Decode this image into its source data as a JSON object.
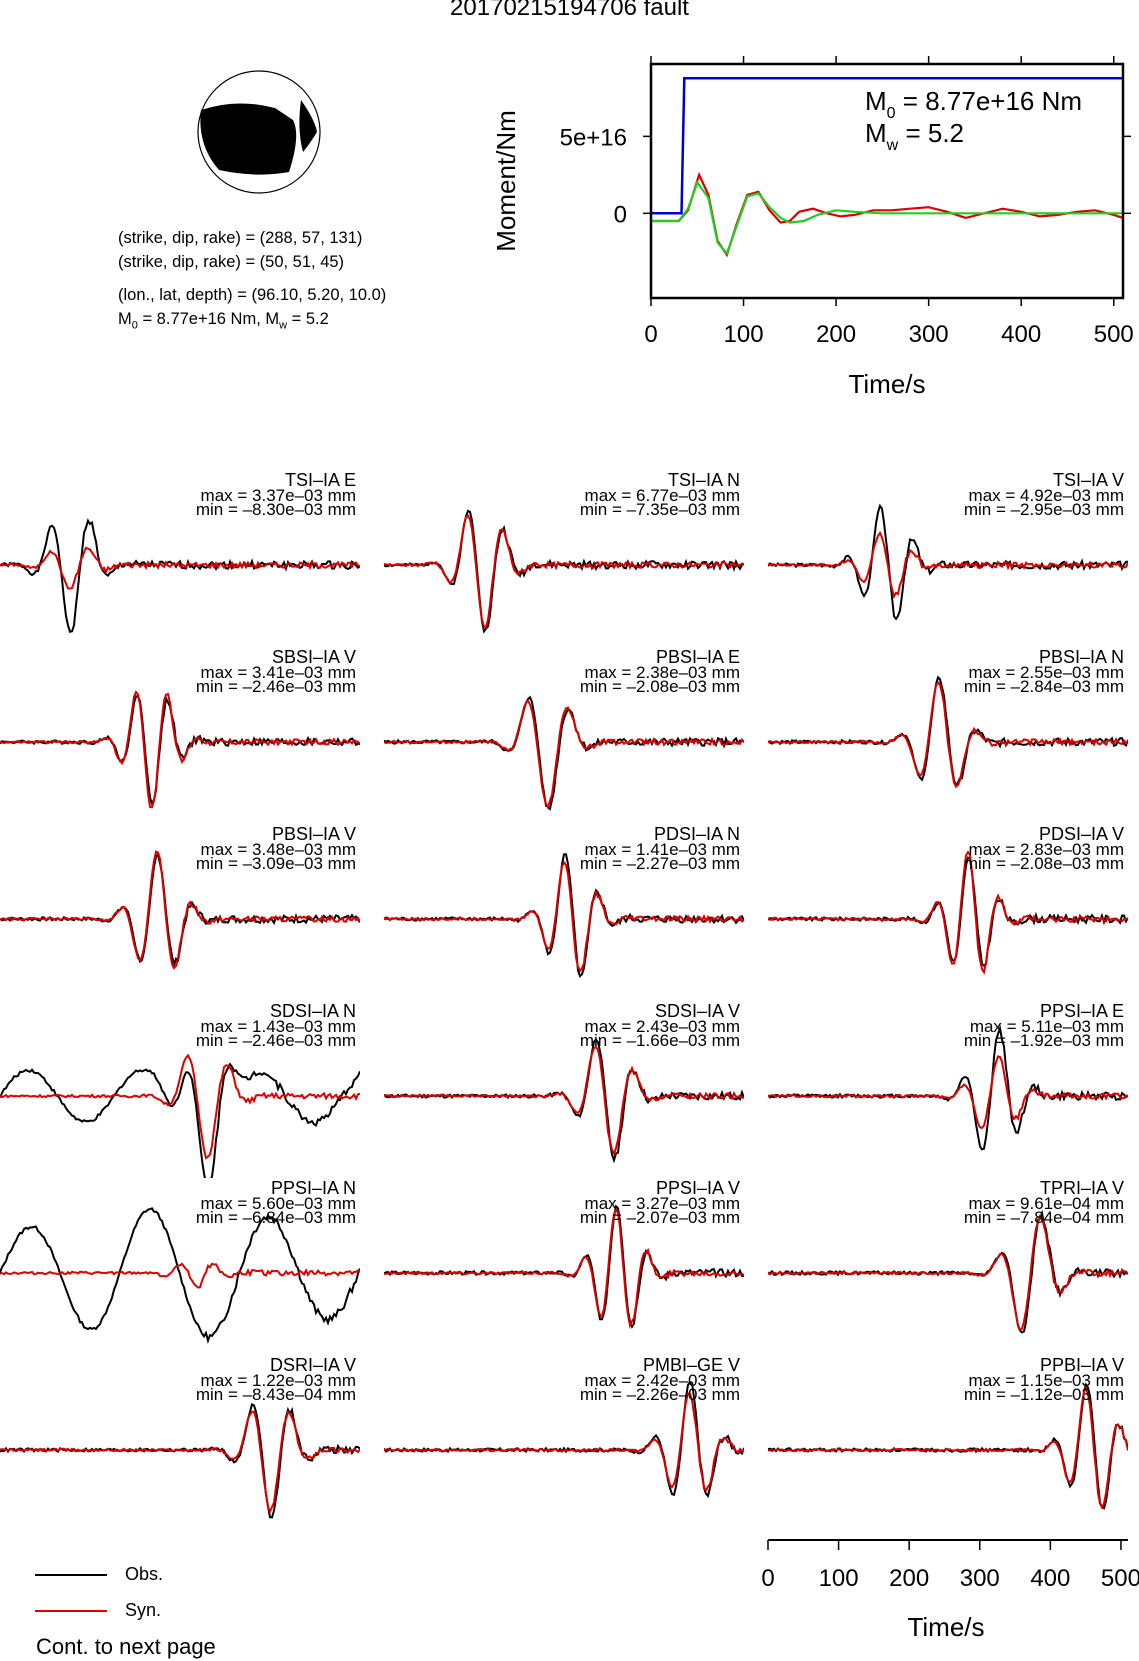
{
  "page_title": "20170215194706 fault",
  "event_info": {
    "line1": "(strike, dip, rake) = (288, 57, 131)",
    "line2": "(strike, dip, rake) = (50, 51, 45)",
    "line3": "(lon., lat, depth) = (96.10, 5.20, 10.0)",
    "line4_m0_prefix": "M",
    "line4_m0_sub": "0",
    "line4_m0_value": " = 8.77e+16 Nm, M",
    "line4_mw_sub": "w",
    "line4_mw_value": " = 5.2"
  },
  "beachball": {
    "fill_color": "#000000",
    "background_color": "#ffffff"
  },
  "chart_data": [
    {
      "type": "line",
      "title": "",
      "xlabel": "Time/s",
      "ylabel": "Moment/Nm",
      "xlim": [
        0,
        510
      ],
      "ylim": [
        -5.5e+16,
        9.7e+16
      ],
      "xticks": [
        0,
        100,
        200,
        300,
        400,
        500
      ],
      "ytick_labels": [
        {
          "value": 0,
          "label": "0"
        },
        {
          "value": 5e+16,
          "label": "5e+16"
        }
      ],
      "annotation": {
        "m0_symbol": "M",
        "m0_sub": "0",
        "m0_text": " = 8.77e+16 Nm",
        "mw_symbol": "M",
        "mw_sub": "w",
        "mw_text": " = 5.2"
      },
      "series": [
        {
          "color": "#0000cc",
          "x": [
            0,
            33,
            36,
            510
          ],
          "y": [
            0,
            0,
            8.77e+16,
            8.77e+16
          ]
        },
        {
          "color": "#dd0000",
          "x": [
            0,
            30,
            40,
            52,
            62,
            72,
            82,
            92,
            104,
            116,
            128,
            140,
            150,
            160,
            175,
            190,
            205,
            220,
            240,
            260,
            280,
            300,
            320,
            340,
            360,
            380,
            400,
            420,
            440,
            460,
            480,
            500,
            510
          ],
          "y": [
            -5000000000000000.0,
            -5000000000000000.0,
            2000000000000000.0,
            2.5e+16,
            1.2e+16,
            -1.8e+16,
            -2.7e+16,
            -8000000000000000.0,
            1.2e+16,
            1.4e+16,
            2000000000000000.0,
            -6000000000000000.0,
            -5000000000000000.0,
            1000000000000000.0,
            3000000000000000.0,
            0,
            -2000000000000000.0,
            -1000000000000000.0,
            2000000000000000.0,
            2000000000000000.0,
            3000000000000000.0,
            4000000000000000.0,
            1000000000000000.0,
            -3000000000000000.0,
            0,
            3000000000000000.0,
            1000000000000000.0,
            -2000000000000000.0,
            -1000000000000000.0,
            1000000000000000.0,
            2000000000000000.0,
            -1000000000000000.0,
            -3000000000000000.0
          ]
        },
        {
          "color": "#22cc22",
          "x": [
            0,
            30,
            40,
            50,
            62,
            72,
            82,
            92,
            104,
            116,
            128,
            140,
            150,
            165,
            180,
            200,
            220,
            250,
            300,
            400,
            510
          ],
          "y": [
            -5000000000000000.0,
            -5000000000000000.0,
            3000000000000000.0,
            2e+16,
            1e+16,
            -1.9e+16,
            -2.6e+16,
            -9000000000000000.0,
            1.1e+16,
            1.3e+16,
            4000000000000000.0,
            -3000000000000000.0,
            -6000000000000000.0,
            -5000000000000000.0,
            -1000000000000000.0,
            2000000000000000.0,
            1000000000000000.0,
            0,
            0,
            0,
            0
          ]
        }
      ]
    },
    {
      "type": "line",
      "title": "",
      "xlabel": "Time/s",
      "xlim": [
        0,
        510
      ],
      "xticks": [
        0,
        100,
        200,
        300,
        400,
        500
      ],
      "legend": [
        {
          "name": "Obs.",
          "color": "#000000"
        },
        {
          "name": "Syn.",
          "color": "#dd0000"
        }
      ],
      "panels": [
        {
          "label": "TSI–IA E",
          "max": "max = 3.37e–03 mm",
          "min": "min = –8.30e–03 mm",
          "seed": 1,
          "amp_obs": 1.0,
          "amp_syn": 0.35,
          "peak": 0.2
        },
        {
          "label": "TSI–IA N",
          "max": "max = 6.77e–03 mm",
          "min": "min = –7.35e–03 mm",
          "seed": 2,
          "amp_obs": 1.0,
          "amp_syn": 0.95,
          "peak": 0.27
        },
        {
          "label": "TSI–IA V",
          "max": "max = 4.92e–03 mm",
          "min": "min = –2.95e–03 mm",
          "seed": 3,
          "amp_obs": 0.9,
          "amp_syn": 0.5,
          "peak": 0.33
        },
        {
          "label": "SBSI–IA V",
          "max": "max = 3.41e–03 mm",
          "min": "min = –2.46e–03 mm",
          "seed": 4,
          "amp_obs": 0.9,
          "amp_syn": 1.0,
          "peak": 0.42
        },
        {
          "label": "PBSI–IA E",
          "max": "max = 2.38e–03 mm",
          "min": "min = –2.08e–03 mm",
          "seed": 5,
          "amp_obs": 1.0,
          "amp_syn": 0.95,
          "peak": 0.45
        },
        {
          "label": "PBSI–IA N",
          "max": "max = 2.55e–03 mm",
          "min": "min = –2.84e–03 mm",
          "seed": 6,
          "amp_obs": 0.95,
          "amp_syn": 0.9,
          "peak": 0.48
        },
        {
          "label": "PBSI–IA V",
          "max": "max = 3.48e–03 mm",
          "min": "min = –3.09e–03 mm",
          "seed": 7,
          "amp_obs": 0.95,
          "amp_syn": 1.0,
          "peak": 0.44
        },
        {
          "label": "PDSI–IA N",
          "max": "max = 1.41e–03 mm",
          "min": "min = –2.27e–03 mm",
          "seed": 8,
          "amp_obs": 1.0,
          "amp_syn": 0.9,
          "peak": 0.52
        },
        {
          "label": "PDSI–IA V",
          "max": "max = 2.83e–03 mm",
          "min": "min = –2.08e–03 mm",
          "seed": 9,
          "amp_obs": 0.9,
          "amp_syn": 1.0,
          "peak": 0.56
        },
        {
          "label": "SDSI–IA N",
          "max": "max = 1.43e–03 mm",
          "min": "min = –2.46e–03 mm",
          "seed": 10,
          "amp_obs": 1.0,
          "amp_syn": 0.9,
          "peak": 0.57
        },
        {
          "label": "SDSI–IA V",
          "max": "max = 2.43e–03 mm",
          "min": "min = –1.66e–03 mm",
          "seed": 11,
          "amp_obs": 1.0,
          "amp_syn": 0.9,
          "peak": 0.62
        },
        {
          "label": "PPSI–IA E",
          "max": "max = 5.11e–03 mm",
          "min": "min = –1.92e–03 mm",
          "seed": 12,
          "amp_obs": 1.0,
          "amp_syn": 0.6,
          "peak": 0.63
        },
        {
          "label": "PPSI–IA N",
          "max": "max = 5.60e–03 mm",
          "min": "min = –6.84e–03 mm",
          "seed": 13,
          "amp_obs": 1.0,
          "amp_syn": 0.2,
          "peak": 0.55
        },
        {
          "label": "PPSI–IA V",
          "max": "max = 3.27e–03 mm",
          "min": "min = –2.07e–03 mm",
          "seed": 14,
          "amp_obs": 1.0,
          "amp_syn": 0.95,
          "peak": 0.65
        },
        {
          "label": "TPRI–IA V",
          "max": "max = 9.61e–04 mm",
          "min": "min = –7.84e–04 mm",
          "seed": 15,
          "amp_obs": 1.0,
          "amp_syn": 0.95,
          "peak": 0.73
        },
        {
          "label": "DSRI–IA V",
          "max": "max = 1.22e–03 mm",
          "min": "min = –8.43e–04 mm",
          "seed": 16,
          "amp_obs": 1.0,
          "amp_syn": 0.9,
          "peak": 0.75
        },
        {
          "label": "PMBI–GE V",
          "max": "max = 2.42e–03 mm",
          "min": "min = –2.26e–03 mm",
          "seed": 17,
          "amp_obs": 1.0,
          "amp_syn": 0.85,
          "peak": 0.85
        },
        {
          "label": "PPBI–IA V",
          "max": "max = 1.15e–03 mm",
          "min": "min = –1.12e–03 mm",
          "seed": 18,
          "amp_obs": 1.0,
          "amp_syn": 0.95,
          "peak": 0.9
        }
      ]
    }
  ],
  "legend": {
    "obs_label": "Obs.",
    "syn_label": "Syn.",
    "obs_color": "#000000",
    "syn_color": "#dd0000"
  },
  "footnote": "Cont. to next page"
}
